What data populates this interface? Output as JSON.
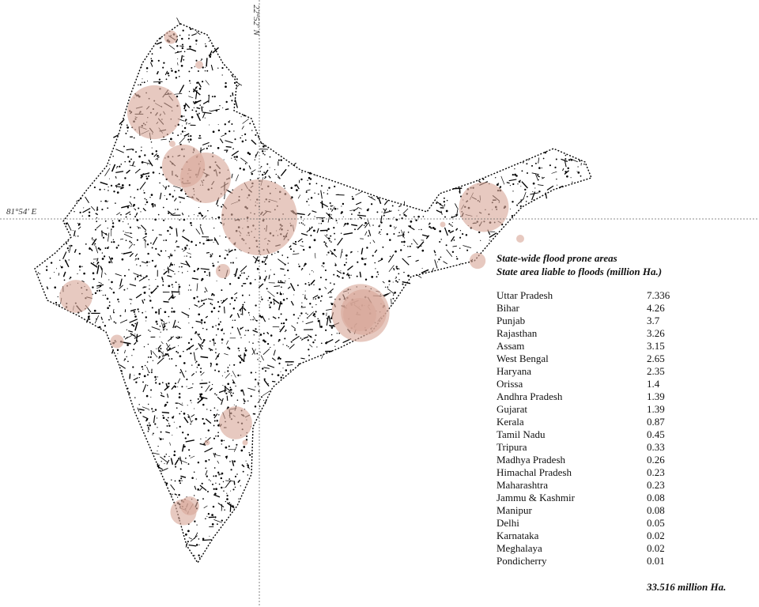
{
  "map": {
    "bubble_color": "#d9a89a",
    "land_color": "#000000",
    "axis_labels": {
      "longitude": "81°54' E",
      "latitude": "22°52' N"
    }
  },
  "legend": {
    "title_line1": "State-wide flood prone areas",
    "title_line2": "State area liable to floods (million Ha.)"
  },
  "states": [
    {
      "name": "Uttar Pradesh",
      "value": "7.336"
    },
    {
      "name": "Bihar",
      "value": "4.26"
    },
    {
      "name": "Punjab",
      "value": "3.7"
    },
    {
      "name": "Rajasthan",
      "value": "3.26"
    },
    {
      "name": "Assam",
      "value": "3.15"
    },
    {
      "name": "West Bengal",
      "value": "2.65"
    },
    {
      "name": "Haryana",
      "value": "2.35"
    },
    {
      "name": "Orissa",
      "value": "1.4"
    },
    {
      "name": "Andhra Pradesh",
      "value": "1.39"
    },
    {
      "name": "Gujarat",
      "value": "1.39"
    },
    {
      "name": "Kerala",
      "value": "0.87"
    },
    {
      "name": "Tamil Nadu",
      "value": "0.45"
    },
    {
      "name": "Tripura",
      "value": "0.33"
    },
    {
      "name": "Madhya Pradesh",
      "value": "0.26"
    },
    {
      "name": "Himachal Pradesh",
      "value": "0.23"
    },
    {
      "name": "Maharashtra",
      "value": "0.23"
    },
    {
      "name": "Jammu & Kashmir",
      "value": "0.08"
    },
    {
      "name": "Manipur",
      "value": "0.08"
    },
    {
      "name": "Delhi",
      "value": "0.05"
    },
    {
      "name": "Karnataka",
      "value": "0.02"
    },
    {
      "name": "Meghalaya",
      "value": "0.02"
    },
    {
      "name": "Pondicherry",
      "value": "0.01"
    }
  ],
  "total": "33.516 million Ha."
}
